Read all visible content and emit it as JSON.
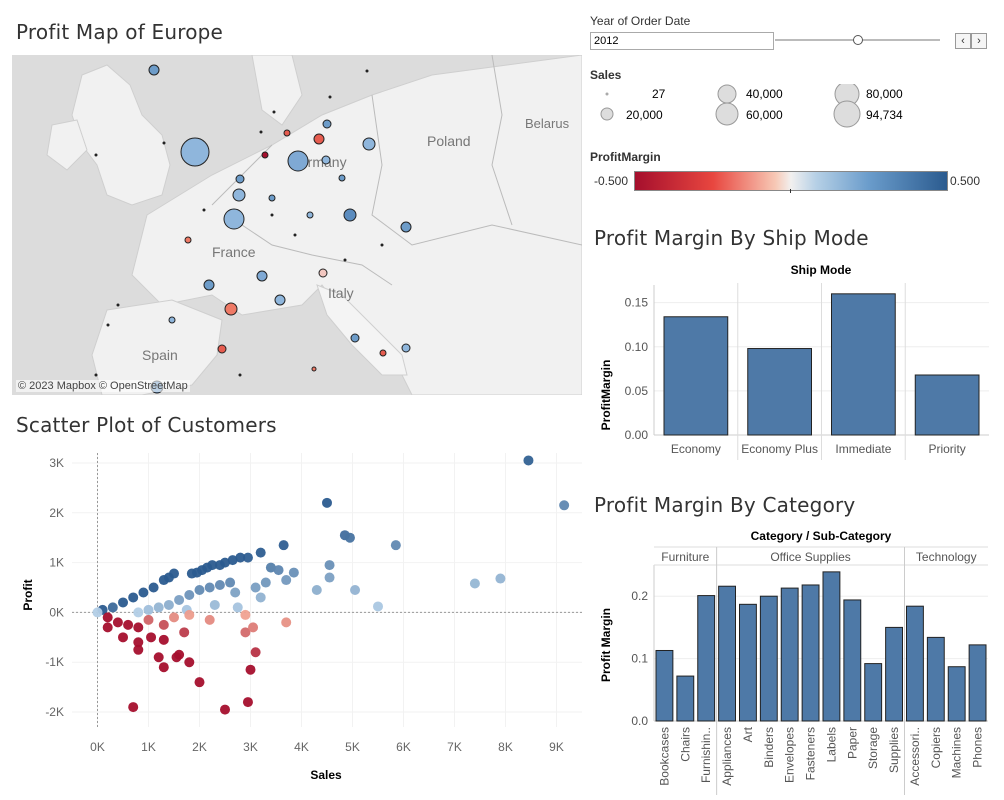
{
  "map": {
    "title": "Profit Map of Europe",
    "labels": {
      "poland": "Poland",
      "belarus": "Belarus",
      "germany": "Germany",
      "france": "France",
      "italy": "Italy",
      "spain": "Spain"
    },
    "attribution": "© 2023 Mapbox  © OpenStreetMap"
  },
  "filter": {
    "label": "Year of Order Date",
    "value": "2012",
    "prev_icon": "chevron-left-icon",
    "next_icon": "chevron-right-icon"
  },
  "sales_legend": {
    "title": "Sales",
    "items": [
      "27",
      "20,000",
      "40,000",
      "60,000",
      "80,000",
      "94,734"
    ]
  },
  "margin_legend": {
    "title": "ProfitMargin",
    "min": "-0.500",
    "max": "0.500",
    "colors": {
      "neg": "#a50f2d",
      "mid": "#f2f0ef",
      "pos": "#2b5b8f"
    }
  },
  "ship_chart": {
    "title": "Profit Margin By Ship Mode",
    "chart_data": {
      "type": "bar",
      "header": "Ship Mode",
      "categories": [
        "Economy",
        "Economy Plus",
        "Immediate",
        "Priority"
      ],
      "values": [
        0.134,
        0.098,
        0.16,
        0.068
      ],
      "ylabel": "ProfitMargin",
      "yticks": [
        "0.00",
        "0.05",
        "0.10",
        "0.15"
      ],
      "ylim": [
        0,
        0.17
      ],
      "bar_color": "#4e79a7"
    }
  },
  "category_chart": {
    "title": "Profit Margin By Category",
    "chart_data": {
      "type": "bar",
      "header": "Category / Sub-Category",
      "groups": [
        {
          "name": "Furniture",
          "subcategories": [
            "Bookcases",
            "Chairs",
            "Furnishin.."
          ],
          "values": [
            0.113,
            0.072,
            0.201
          ]
        },
        {
          "name": "Office Supplies",
          "subcategories": [
            "Appliances",
            "Art",
            "Binders",
            "Envelopes",
            "Fasteners",
            "Labels",
            "Paper",
            "Storage",
            "Supplies"
          ],
          "values": [
            0.216,
            0.187,
            0.2,
            0.213,
            0.218,
            0.239,
            0.194,
            0.092,
            0.15
          ]
        },
        {
          "name": "Technology",
          "subcategories": [
            "Accessori..",
            "Copiers",
            "Machines",
            "Phones"
          ],
          "values": [
            0.184,
            0.134,
            0.087,
            0.122
          ]
        }
      ],
      "ylabel": "Profit Margin",
      "yticks": [
        "0.0",
        "0.1",
        "0.2"
      ],
      "ylim": [
        0,
        0.25
      ],
      "bar_color": "#4e79a7"
    }
  },
  "scatter": {
    "title": "Scatter Plot of Customers",
    "chart_data": {
      "type": "scatter",
      "xlabel": "Sales",
      "ylabel": "Profit",
      "xticks": [
        "0K",
        "1K",
        "2K",
        "3K",
        "4K",
        "5K",
        "6K",
        "7K",
        "8K",
        "9K"
      ],
      "yticks": [
        "3K",
        "2K",
        "1K",
        "0K",
        "-1K",
        "-2K"
      ],
      "xlim": [
        -500,
        9500
      ],
      "ylim": [
        -2300,
        3200
      ],
      "points": [
        [
          8450,
          3050
        ],
        [
          9150,
          2150
        ],
        [
          4500,
          2200
        ],
        [
          4850,
          1550
        ],
        [
          4950,
          1500
        ],
        [
          5850,
          1350
        ],
        [
          3650,
          1350
        ],
        [
          3200,
          1200
        ],
        [
          2950,
          1100
        ],
        [
          2800,
          1100
        ],
        [
          2650,
          1050
        ],
        [
          2500,
          1000
        ],
        [
          2400,
          950
        ],
        [
          2250,
          950
        ],
        [
          2150,
          900
        ],
        [
          2050,
          850
        ],
        [
          1950,
          800
        ],
        [
          1850,
          780
        ],
        [
          1500,
          780
        ],
        [
          1400,
          700
        ],
        [
          1300,
          650
        ],
        [
          1100,
          500
        ],
        [
          900,
          400
        ],
        [
          700,
          300
        ],
        [
          500,
          200
        ],
        [
          300,
          100
        ],
        [
          100,
          50
        ],
        [
          0,
          0
        ],
        [
          3400,
          900
        ],
        [
          3550,
          850
        ],
        [
          3850,
          800
        ],
        [
          4550,
          950
        ],
        [
          4550,
          700
        ],
        [
          3300,
          600
        ],
        [
          3100,
          500
        ],
        [
          2700,
          400
        ],
        [
          2600,
          600
        ],
        [
          2400,
          550
        ],
        [
          2200,
          500
        ],
        [
          2000,
          450
        ],
        [
          1800,
          350
        ],
        [
          1600,
          250
        ],
        [
          1400,
          150
        ],
        [
          1200,
          100
        ],
        [
          1000,
          50
        ],
        [
          800,
          0
        ],
        [
          4300,
          450
        ],
        [
          5050,
          450
        ],
        [
          5500,
          120
        ],
        [
          7400,
          580
        ],
        [
          7900,
          680
        ],
        [
          3700,
          650
        ],
        [
          3200,
          300
        ],
        [
          2750,
          100
        ],
        [
          2300,
          150
        ],
        [
          1750,
          50
        ],
        [
          200,
          -100
        ],
        [
          400,
          -200
        ],
        [
          600,
          -250
        ],
        [
          800,
          -300
        ],
        [
          1000,
          -150
        ],
        [
          1300,
          -250
        ],
        [
          1500,
          -100
        ],
        [
          1800,
          -50
        ],
        [
          2200,
          -150
        ],
        [
          2900,
          -50
        ],
        [
          3700,
          -200
        ],
        [
          2900,
          -400
        ],
        [
          3050,
          -300
        ],
        [
          200,
          -300
        ],
        [
          500,
          -500
        ],
        [
          800,
          -600
        ],
        [
          1050,
          -500
        ],
        [
          1300,
          -550
        ],
        [
          1700,
          -400
        ],
        [
          800,
          -750
        ],
        [
          1200,
          -900
        ],
        [
          1600,
          -850
        ],
        [
          1800,
          -1000
        ],
        [
          1300,
          -1100
        ],
        [
          2000,
          -1400
        ],
        [
          3100,
          -800
        ],
        [
          3000,
          -1150
        ],
        [
          2950,
          -1800
        ],
        [
          2500,
          -1950
        ],
        [
          700,
          -1900
        ],
        [
          1550,
          -900
        ]
      ],
      "profits_margin_color_note": "blue = positive, red = negative"
    }
  }
}
